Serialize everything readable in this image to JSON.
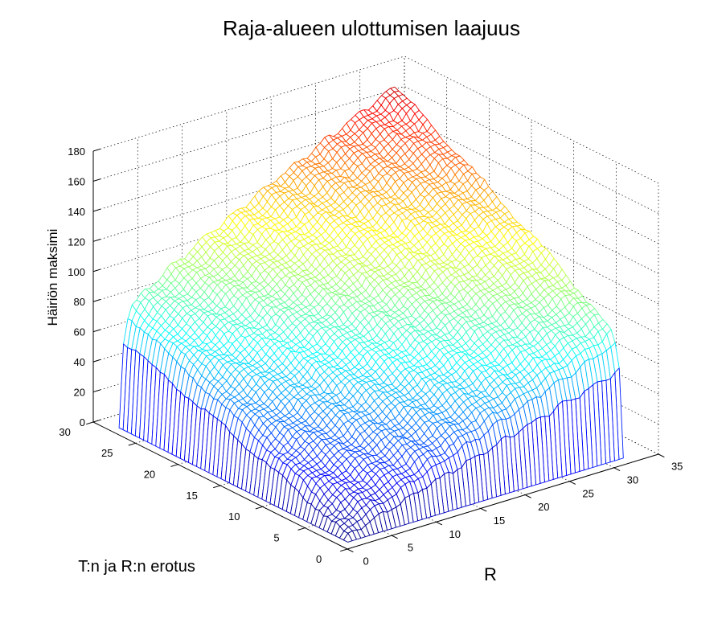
{
  "chart_data": {
    "type": "surface",
    "title": "Raja-alueen ulottumisen laajuus",
    "xlabel": "R",
    "ylabel": "T:n ja R:n erotus",
    "zlabel": "Häiriön maksimi",
    "x_range": [
      0,
      35
    ],
    "y_range": [
      0,
      30
    ],
    "z_range": [
      0,
      180
    ],
    "x_ticks": [
      "0",
      "5",
      "10",
      "15",
      "20",
      "25",
      "30",
      "35"
    ],
    "y_ticks": [
      "0",
      "5",
      "10",
      "15",
      "20",
      "25",
      "30"
    ],
    "z_ticks": [
      "0",
      "20",
      "40",
      "60",
      "80",
      "100",
      "120",
      "140",
      "160",
      "180"
    ],
    "grid": true,
    "colormap": "jet",
    "mesh": {
      "x_range": [
        1,
        32
      ],
      "y_range": [
        1,
        28
      ],
      "x_samples": 64,
      "y_samples": 57,
      "peak": {
        "x": 32,
        "y": 28,
        "z": 171
      },
      "corner_heights": [
        {
          "x": 1,
          "y": 28,
          "z": 3
        },
        {
          "x": 1,
          "y": 27,
          "z": 68
        },
        {
          "x": 32,
          "y": 1,
          "z": 3
        },
        {
          "x": 31,
          "y": 1,
          "z": 70
        },
        {
          "x": 1,
          "y": 1,
          "z": 0
        }
      ]
    }
  }
}
